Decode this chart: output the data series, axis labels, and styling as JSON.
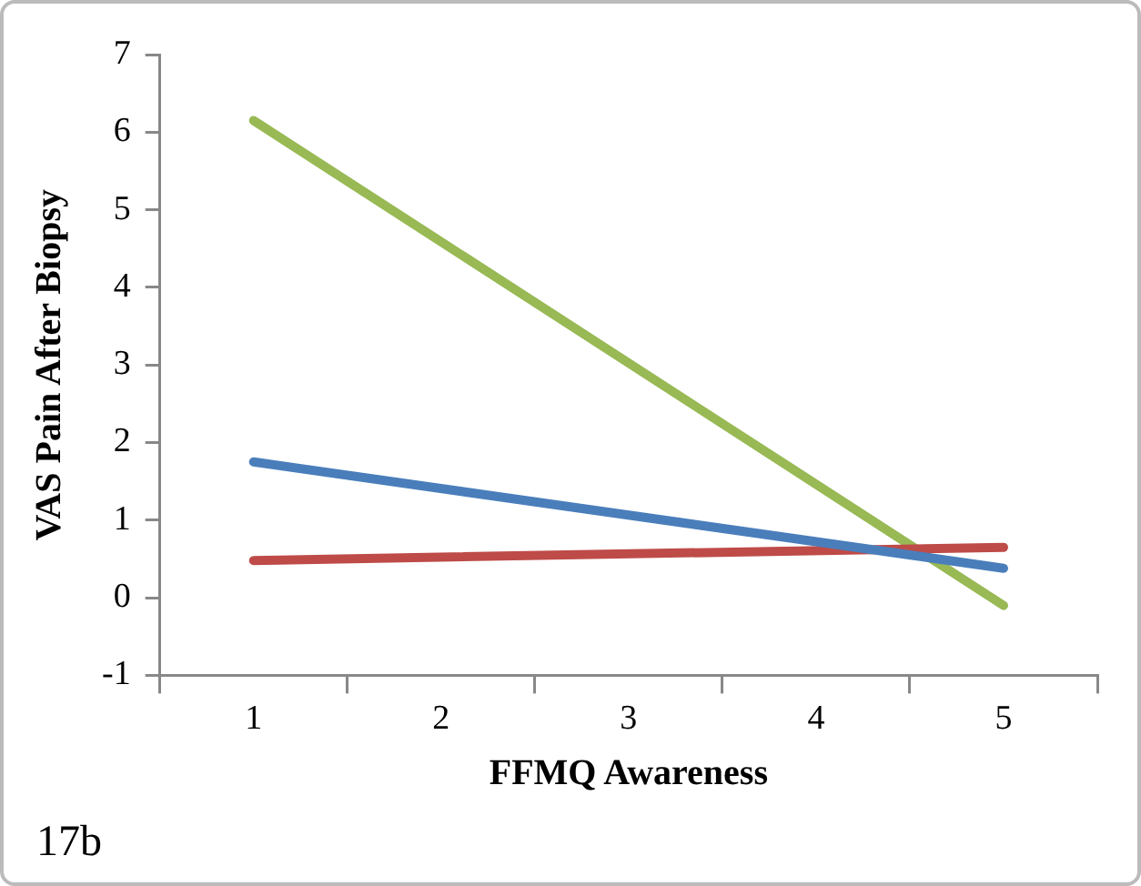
{
  "chart_data": {
    "type": "line",
    "xlabel": "FFMQ Awareness",
    "ylabel": "VAS Pain After Biopsy",
    "categories": [
      "1",
      "2",
      "3",
      "4",
      "5"
    ],
    "series": [
      {
        "color": "#4a7ebb",
        "values": [
          1.75,
          null,
          null,
          null,
          0.38
        ]
      },
      {
        "color": "#be4b48",
        "values": [
          0.48,
          null,
          null,
          null,
          0.65
        ]
      },
      {
        "color": "#98b954",
        "values": [
          6.15,
          null,
          null,
          null,
          -0.1
        ]
      }
    ],
    "ylim": [
      -1,
      7
    ],
    "yticks": [
      -1,
      0,
      1,
      2,
      3,
      4,
      5,
      6,
      7
    ],
    "grid": false,
    "legend": false,
    "marker": "none",
    "line_style": "solid",
    "annotations": [
      "17b"
    ]
  }
}
